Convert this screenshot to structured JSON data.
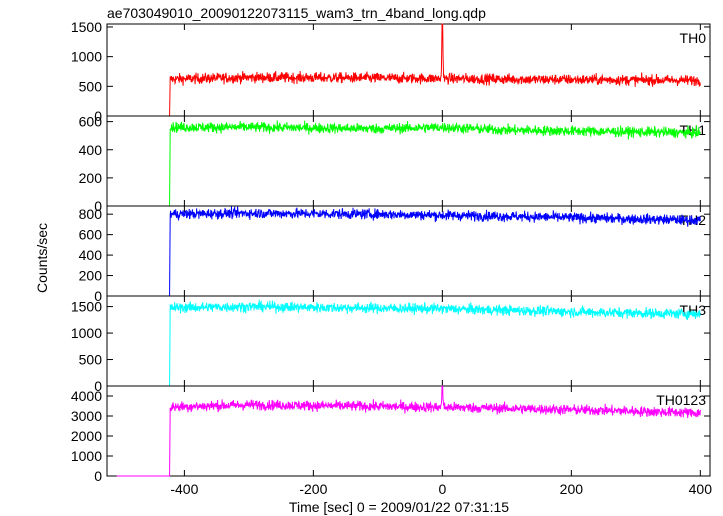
{
  "chart_data": {
    "type": "line",
    "title": "ae703049010_20090122073115_wam3_trn_4band_long.qdp",
    "xlabel": "Time [sec] 0 = 2009/01/22 07:31:15",
    "ylabel": "Counts/sec",
    "xlim": [
      -520,
      415
    ],
    "x_ticks": [
      -400,
      -200,
      0,
      200,
      400
    ],
    "colors": {
      "TH0": "#ff0000",
      "TH1": "#00ff00",
      "TH2": "#0000ff",
      "TH3": "#00ffff",
      "TH0123": "#ff00ff"
    },
    "panels": [
      {
        "name": "TH0",
        "ylim": [
          0,
          1550
        ],
        "y_ticks": [
          0,
          500,
          1000,
          1500
        ],
        "series": {
          "x": [
            -505,
            -423,
            -422,
            -300,
            -100,
            -2,
            0,
            2,
            100,
            250,
            400
          ],
          "values": [
            0,
            0,
            620,
            650,
            640,
            630,
            1550,
            630,
            620,
            610,
            600
          ]
        }
      },
      {
        "name": "TH1",
        "ylim": [
          0,
          640
        ],
        "y_ticks": [
          0,
          200,
          400,
          600
        ],
        "series": {
          "x": [
            -505,
            -423,
            -422,
            -300,
            -100,
            0,
            100,
            250,
            400
          ],
          "values": [
            0,
            0,
            560,
            560,
            550,
            560,
            540,
            530,
            520
          ]
        }
      },
      {
        "name": "TH2",
        "ylim": [
          0,
          880
        ],
        "y_ticks": [
          0,
          200,
          400,
          600,
          800
        ],
        "series": {
          "x": [
            -505,
            -423,
            -422,
            -300,
            -100,
            0,
            100,
            250,
            400
          ],
          "values": [
            0,
            0,
            800,
            810,
            800,
            790,
            780,
            760,
            740
          ]
        }
      },
      {
        "name": "TH3",
        "ylim": [
          0,
          1700
        ],
        "y_ticks": [
          0,
          500,
          1000,
          1500
        ],
        "series": {
          "x": [
            -505,
            -423,
            -422,
            -300,
            -100,
            0,
            100,
            250,
            400
          ],
          "values": [
            0,
            0,
            1480,
            1500,
            1470,
            1460,
            1430,
            1390,
            1360
          ]
        }
      },
      {
        "name": "TH0123",
        "ylim": [
          0,
          4500
        ],
        "y_ticks": [
          0,
          1000,
          2000,
          3000,
          4000
        ],
        "series": {
          "x": [
            -505,
            -423,
            -422,
            -300,
            -100,
            -2,
            0,
            2,
            100,
            250,
            400
          ],
          "values": [
            0,
            0,
            3450,
            3560,
            3480,
            3440,
            4500,
            3440,
            3380,
            3280,
            3150
          ]
        }
      }
    ]
  }
}
